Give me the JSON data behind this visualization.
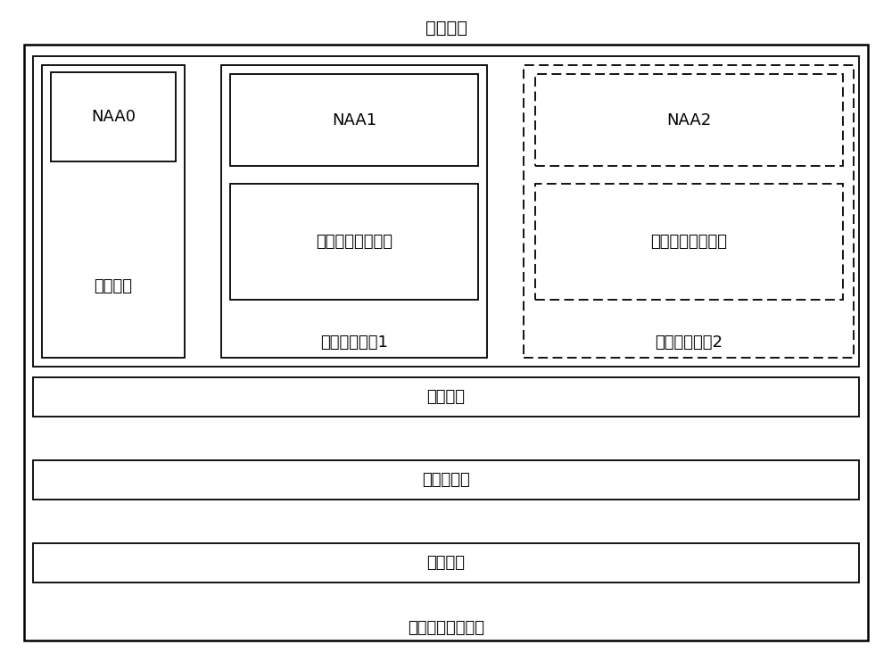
{
  "title_top": "终端设备",
  "title_bottom": "嵌入式通用电路卡",
  "label_file_install": "文件安装",
  "label_file_block": "文件块管理",
  "label_os": "操作系统",
  "label_naa0": "NAA0",
  "label_reserve": "预备文件",
  "label_naa1": "NAA1",
  "label_other_net1": "其它网络接入应用",
  "label_exec1": "可执行性文件1",
  "label_naa2": "NAA2",
  "label_other_net2": "其它网络接入应用",
  "label_exec2": "可执行性文件2",
  "bg_color": "#ffffff",
  "box_color": "#000000",
  "font_size": 13,
  "font_size_title": 14,
  "fig_w": 10.0,
  "fig_h": 7.41,
  "dpi": 100
}
